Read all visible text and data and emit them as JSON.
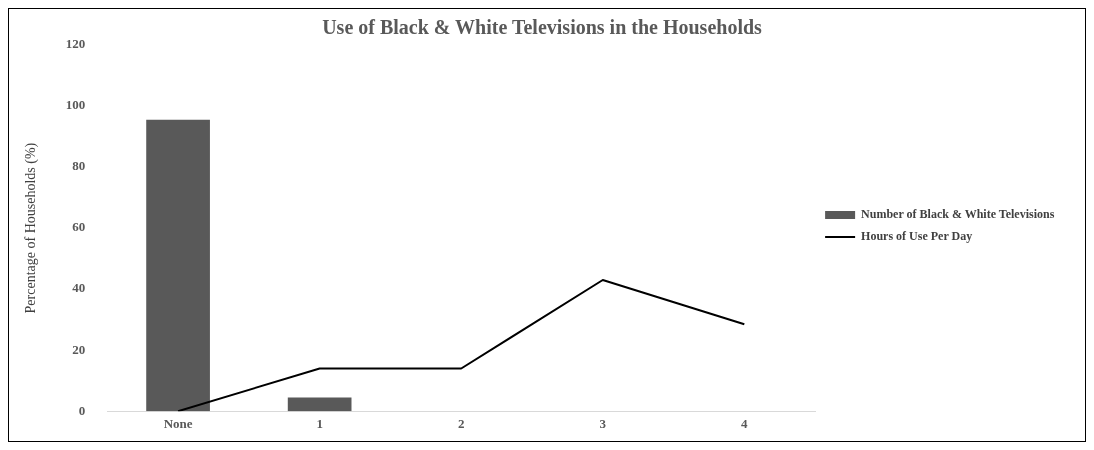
{
  "chart_data": {
    "type": "bar",
    "title": "Use of Black & White Televisions in the Households",
    "ylabel": "Percentage of Households (%)",
    "categories": [
      "None",
      "1",
      "2",
      "3",
      "4"
    ],
    "series": [
      {
        "name": "Number of Black & White Televisions",
        "color": "#595959",
        "values": [
          95.5,
          4.5,
          0,
          0,
          0
        ]
      },
      {
        "name": "Hours of Use Per Day",
        "type": "line",
        "color": "#000000",
        "values": [
          0,
          14,
          14,
          43,
          28.5
        ]
      }
    ],
    "ylim": [
      0,
      120
    ],
    "yticks": [
      0,
      20,
      40,
      60,
      80,
      100,
      120
    ],
    "grid": false,
    "legend": "right",
    "marker": "none",
    "line_style": "solid"
  }
}
